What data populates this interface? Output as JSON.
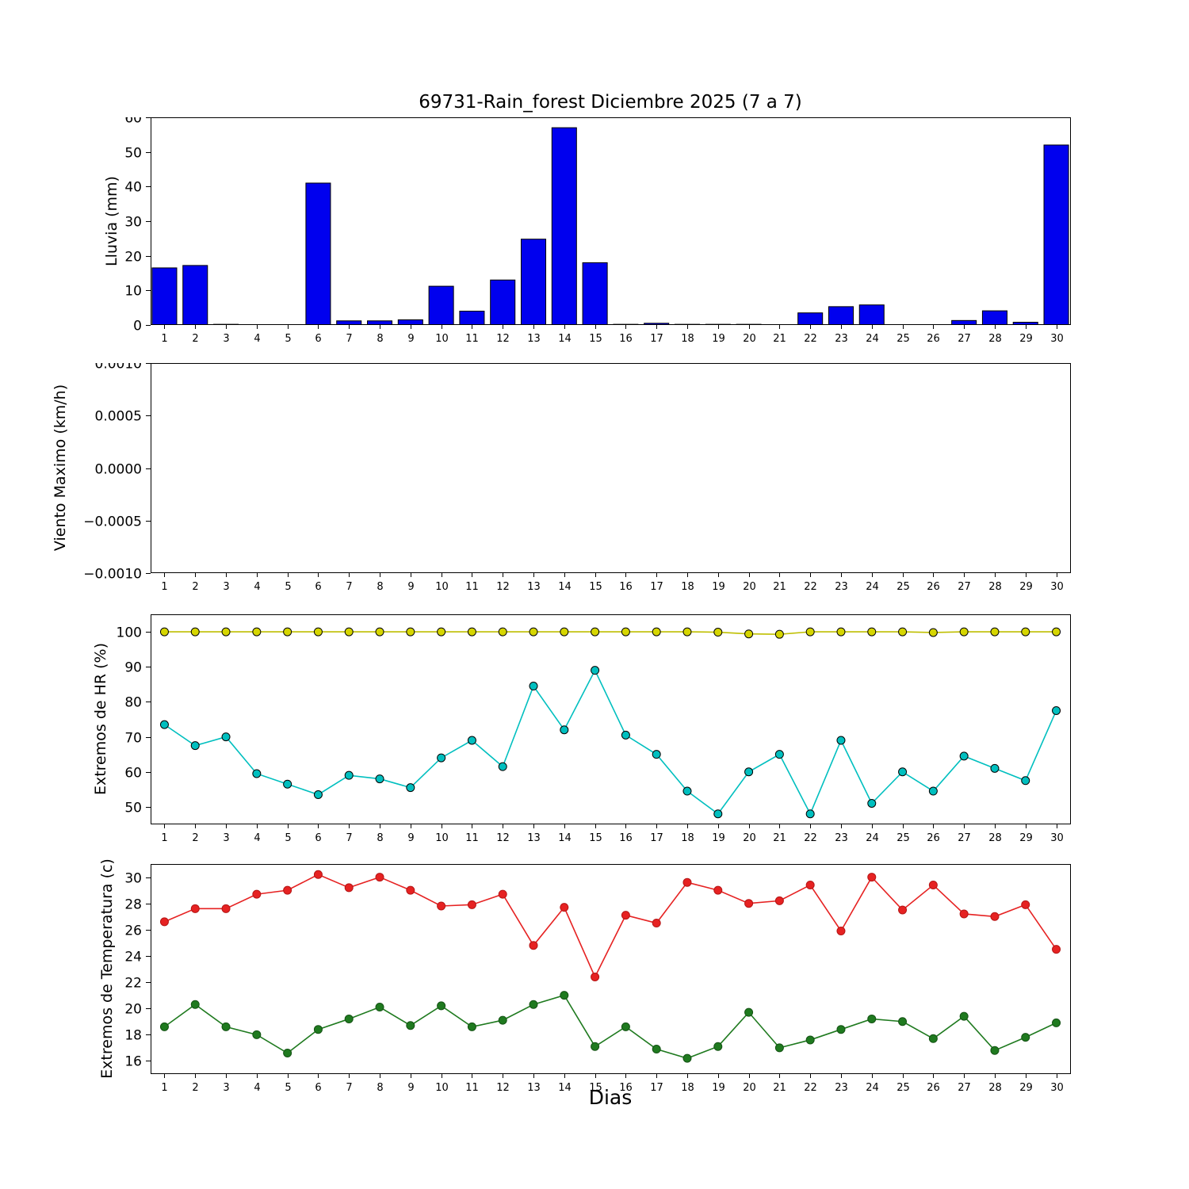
{
  "figure": {
    "title": "69731-Rain_forest Diciembre 2025  (7 a 7)",
    "xlabel": "Dias"
  },
  "days": [
    1,
    2,
    3,
    4,
    5,
    6,
    7,
    8,
    9,
    10,
    11,
    12,
    13,
    14,
    15,
    16,
    17,
    18,
    19,
    20,
    21,
    22,
    23,
    24,
    25,
    26,
    27,
    28,
    29,
    30
  ],
  "chart_data": [
    {
      "type": "bar",
      "name": "lluvia",
      "ylabel": "Lluvia (mm)",
      "ylim": [
        0,
        60
      ],
      "yticks": [
        {
          "v": 0,
          "label": "0"
        },
        {
          "v": 10,
          "label": "10"
        },
        {
          "v": 20,
          "label": "20"
        },
        {
          "v": 30,
          "label": "30"
        },
        {
          "v": 40,
          "label": "40"
        },
        {
          "v": 50,
          "label": "50"
        },
        {
          "v": 60,
          "label": "60"
        }
      ],
      "bar_fill": "#0000ee",
      "bar_edge": "#000000",
      "values": [
        16.5,
        17.2,
        0.2,
        0,
        0,
        41,
        1.2,
        1.2,
        1.5,
        11.2,
        4,
        13,
        24.8,
        57,
        18,
        0.2,
        0.5,
        0.2,
        0.2,
        0.2,
        0,
        3.5,
        5.3,
        5.8,
        0,
        0,
        1.3,
        4.1,
        0.8,
        52
      ]
    },
    {
      "type": "line",
      "name": "viento-maximo",
      "ylabel": "Viento Maximo (km/h)",
      "ylim": [
        -0.001,
        0.001
      ],
      "yticks": [
        {
          "v": -0.001,
          "label": "−0.0010"
        },
        {
          "v": -0.0005,
          "label": "−0.0005"
        },
        {
          "v": 0,
          "label": "0.0000"
        },
        {
          "v": 0.0005,
          "label": "0.0005"
        },
        {
          "v": 0.001,
          "label": "0.0010"
        }
      ],
      "series": []
    },
    {
      "type": "line",
      "name": "extremos-hr",
      "ylabel": "Extremos de HR (%)",
      "ylim": [
        45,
        105
      ],
      "yticks": [
        {
          "v": 50,
          "label": "50"
        },
        {
          "v": 60,
          "label": "60"
        },
        {
          "v": 70,
          "label": "70"
        },
        {
          "v": 80,
          "label": "80"
        },
        {
          "v": 90,
          "label": "90"
        },
        {
          "v": 100,
          "label": "100"
        }
      ],
      "series": [
        {
          "name": "hr-maxima",
          "line": "#bfbf00",
          "marker": "#d6d600",
          "edge": "#000000",
          "values": [
            100,
            100,
            100,
            100,
            100,
            100,
            100,
            100,
            100,
            100,
            100,
            100,
            100,
            100,
            100,
            100,
            100,
            100,
            99.9,
            99.4,
            99.3,
            100,
            100,
            100,
            100,
            99.8,
            100,
            100,
            100,
            100
          ]
        },
        {
          "name": "hr-minima",
          "line": "#00bfbf",
          "marker": "#00bfbf",
          "edge": "#000000",
          "values": [
            73.5,
            67.5,
            70,
            59.5,
            56.5,
            53.5,
            59,
            58,
            55.5,
            64,
            69,
            61.5,
            84.5,
            72,
            89,
            70.5,
            65,
            54.5,
            48,
            60,
            65,
            48,
            69,
            51,
            60,
            54.5,
            64.5,
            61,
            57.5,
            77.5
          ]
        }
      ]
    },
    {
      "type": "line",
      "name": "extremos-temperatura",
      "ylabel": "Extremos de Temperatura (c)",
      "ylim": [
        15,
        31
      ],
      "yticks": [
        {
          "v": 16,
          "label": "16"
        },
        {
          "v": 18,
          "label": "18"
        },
        {
          "v": 20,
          "label": "20"
        },
        {
          "v": 22,
          "label": "22"
        },
        {
          "v": 24,
          "label": "24"
        },
        {
          "v": 26,
          "label": "26"
        },
        {
          "v": 28,
          "label": "28"
        },
        {
          "v": 30,
          "label": "30"
        }
      ],
      "series": [
        {
          "name": "temperatura-maxima",
          "line": "#e62222",
          "marker": "#e62222",
          "edge": "#b51515",
          "values": [
            26.6,
            27.6,
            27.6,
            28.7,
            29.0,
            30.2,
            29.2,
            30.0,
            29.0,
            27.8,
            27.9,
            28.7,
            24.8,
            27.7,
            22.4,
            27.1,
            26.5,
            29.6,
            29.0,
            28.0,
            28.2,
            29.4,
            25.9,
            30.0,
            27.5,
            29.4,
            27.2,
            27.0,
            27.9,
            24.5
          ]
        },
        {
          "name": "temperatura-minima",
          "line": "#1f7a1f",
          "marker": "#1f7a1f",
          "edge": "#145214",
          "values": [
            18.6,
            20.3,
            18.6,
            18.0,
            16.6,
            18.4,
            19.2,
            20.1,
            18.7,
            20.2,
            18.6,
            19.1,
            20.3,
            21.0,
            17.1,
            18.6,
            16.9,
            16.2,
            17.1,
            19.7,
            17.0,
            17.6,
            18.4,
            19.2,
            19.0,
            17.7,
            19.4,
            16.8,
            17.8,
            18.9
          ]
        }
      ]
    }
  ]
}
